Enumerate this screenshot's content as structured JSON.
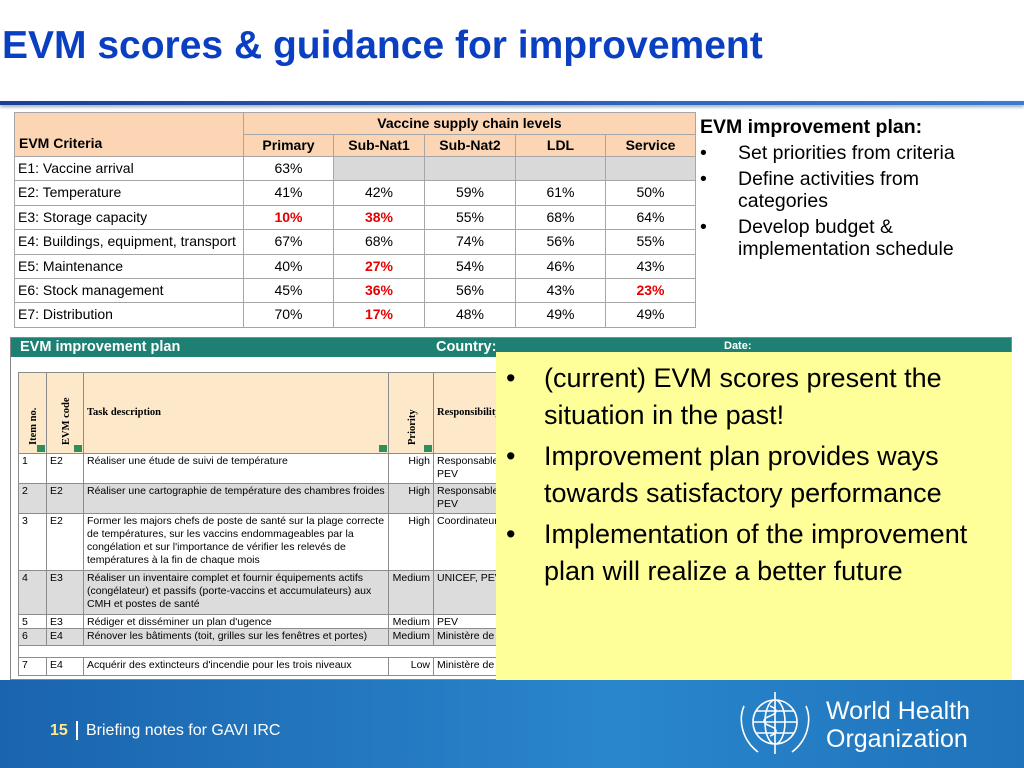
{
  "header": {
    "title": "EVM scores & guidance for improvement"
  },
  "scores_table": {
    "criteria_header": "EVM Criteria",
    "group_header": "Vaccine supply chain levels",
    "highlight_color": "#e60000",
    "columns": [
      "Primary",
      "Sub-Nat1",
      "Sub-Nat2",
      "LDL",
      "Service"
    ],
    "rows": [
      {
        "criterion": "E1: Vaccine arrival",
        "values": [
          "63%"
        ],
        "highlighted": []
      },
      {
        "criterion": "E2: Temperature",
        "values": [
          "41%",
          "42%",
          "59%",
          "61%",
          "50%"
        ],
        "highlighted": []
      },
      {
        "criterion": "E3: Storage capacity",
        "values": [
          "10%",
          "38%",
          "55%",
          "68%",
          "64%"
        ],
        "highlighted": [
          0,
          1
        ]
      },
      {
        "criterion": "E4: Buildings, equipment, transport",
        "values": [
          "67%",
          "68%",
          "74%",
          "56%",
          "55%"
        ],
        "highlighted": []
      },
      {
        "criterion": "E5: Maintenance",
        "values": [
          "40%",
          "27%",
          "54%",
          "46%",
          "43%"
        ],
        "highlighted": [
          1
        ]
      },
      {
        "criterion": "E6: Stock management",
        "values": [
          "45%",
          "36%",
          "56%",
          "43%",
          "23%"
        ],
        "highlighted": [
          1,
          4
        ]
      },
      {
        "criterion": "E7: Distribution",
        "values": [
          "70%",
          "17%",
          "48%",
          "49%",
          "49%"
        ],
        "highlighted": [
          1
        ]
      }
    ]
  },
  "sidebar": {
    "heading": "EVM improvement plan:",
    "bullets": [
      "Set priorities from criteria",
      "Define activities from categories",
      "Develop budget & implementation schedule"
    ]
  },
  "plan_table": {
    "title": "EVM improvement plan",
    "country": "Country:",
    "date": "Date:",
    "columns": [
      "Item no.",
      "EVM code",
      "Task description",
      "Priority",
      "Responsibility"
    ],
    "rows": [
      [
        "1",
        "E2",
        "Réaliser une étude de suivi de température",
        "High",
        "Responsable du PEV"
      ],
      [
        "2",
        "E2",
        "Réaliser une cartographie de température des chambres froides",
        "High",
        "Responsable du PEV"
      ],
      [
        "3",
        "E2",
        "Former les majors chefs de poste de santé sur la plage correcte de températures, sur les vaccins endommageables par la congélation et sur l'importance de vérifier les relevés de températures à la fin de chaque mois",
        "High",
        "Coordinateur"
      ],
      [
        "4",
        "E3",
        "Réaliser un inventaire complet et fournir équipements actifs (congélateur) et passifs (porte-vaccins et accumulateurs) aux CMH et postes de santé",
        "Medium",
        "UNICEF, PEV"
      ],
      [
        "5",
        "E3",
        "Rédiger et disséminer un plan d'ugence",
        "Medium",
        "PEV"
      ],
      [
        "6",
        "E4",
        "Rénover les bâtiments (toit, grilles sur les fenêtres et portes)",
        "Medium",
        "Ministère de"
      ],
      [
        "7",
        "E4",
        "Acquérir des extincteurs d'incendie pour les trois niveaux",
        "Low",
        "Ministère de"
      ]
    ]
  },
  "callout": {
    "bullets": [
      "(current) EVM scores present the situation in the past!",
      "Improvement plan provides ways towards satisfactory performance",
      "Implementation of the improvement plan will realize a better future"
    ]
  },
  "footer": {
    "page": "15",
    "text": "Briefing notes for GAVI IRC",
    "organization": [
      "World Health",
      "Organization"
    ]
  }
}
